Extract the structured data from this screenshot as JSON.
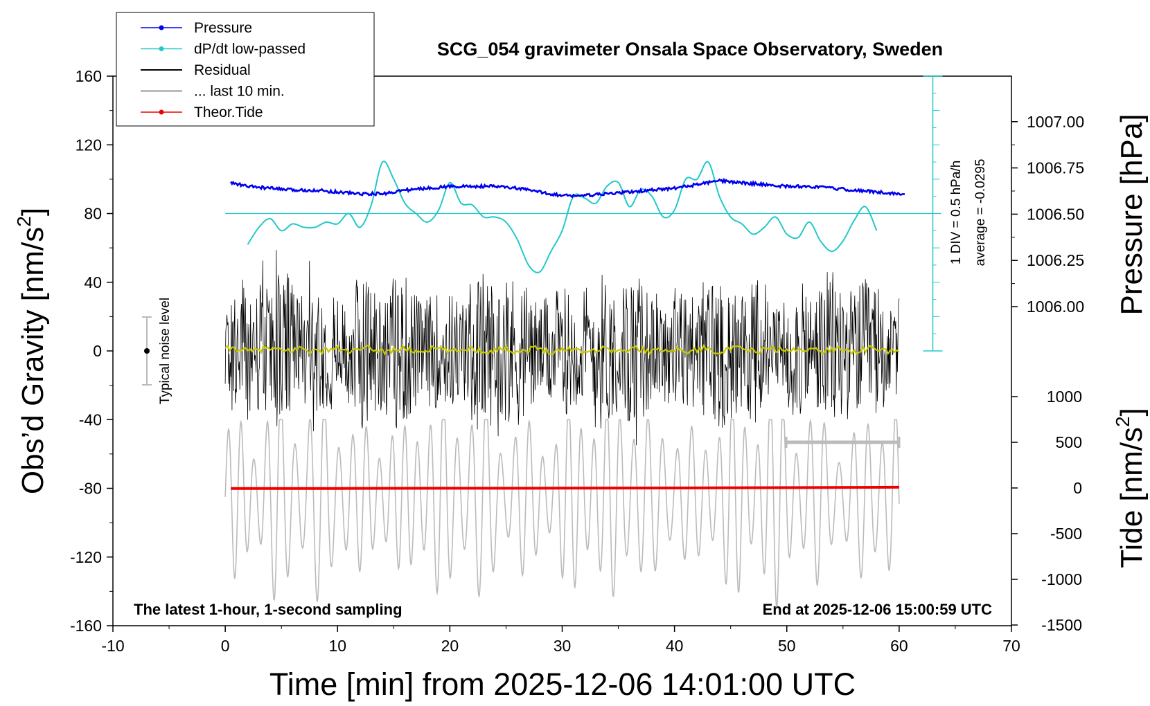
{
  "chart_data": {
    "type": "line",
    "title": "SCG_054 gravimeter Onsala Space Observatory, Sweden",
    "xlabel": "Time [min] from 2025-12-06 14:01:00 UTC",
    "ylabel_left": "Obs’d Gravity [nm/s",
    "ylabel_left_sup": "2",
    "ylabel_left_end": "]",
    "ylabel_pressure": "Pressure [hPa]",
    "ylabel_tide": "Tide [nm/s",
    "ylabel_tide_sup": "2",
    "ylabel_tide_end": "]",
    "xlim": [
      -10,
      70
    ],
    "ylim_left": [
      -160,
      160
    ],
    "x_ticks": [
      "-10",
      "0",
      "10",
      "20",
      "30",
      "40",
      "50",
      "60",
      "70"
    ],
    "y_ticks_left": [
      "-160",
      "-120",
      "-80",
      "-40",
      "0",
      "40",
      "80",
      "120",
      "160"
    ],
    "pressure_ticks": [
      "1006.00",
      "1006.25",
      "1006.50",
      "1006.75",
      "1007.00"
    ],
    "tide_ticks": [
      "-1500",
      "-1000",
      "-500",
      "0",
      "500",
      "1000"
    ],
    "legend": [
      {
        "label": "Pressure",
        "color": "#0000ee",
        "style": "line-dot"
      },
      {
        "label": "dP/dt low-passed",
        "color": "#22c8c8",
        "style": "line-dot"
      },
      {
        "label": "Residual",
        "color": "#000000",
        "style": "line"
      },
      {
        "label": "... last 10 min.",
        "color": "#bbbbbb",
        "style": "line"
      },
      {
        "label": "Theor.Tide",
        "color": "#ee0000",
        "style": "line-dot"
      }
    ],
    "legend_position": "top-left",
    "annotations": {
      "noise": "Typical noise level",
      "bottom_left": "The latest 1-hour, 1-second sampling",
      "bottom_right": "End at 2025-12-06 15:00:59 UTC",
      "dpdt_scale": "1 DIV = 0.5 hPa/h",
      "dpdt_average": "average = -0.0295"
    },
    "series": [
      {
        "name": "Pressure",
        "unit": "hPa",
        "x": [
          0.5,
          2,
          4,
          6,
          8,
          10,
          12,
          14,
          16,
          18,
          20,
          22,
          24,
          26,
          28,
          30,
          32,
          34,
          36,
          38,
          40,
          42,
          44,
          46,
          48,
          50,
          52,
          54,
          56,
          58,
          60
        ],
        "y": [
          1006.67,
          1006.65,
          1006.64,
          1006.63,
          1006.63,
          1006.62,
          1006.61,
          1006.61,
          1006.63,
          1006.64,
          1006.65,
          1006.65,
          1006.65,
          1006.64,
          1006.62,
          1006.6,
          1006.6,
          1006.61,
          1006.62,
          1006.63,
          1006.64,
          1006.66,
          1006.68,
          1006.67,
          1006.66,
          1006.65,
          1006.65,
          1006.64,
          1006.63,
          1006.62,
          1006.61
        ]
      },
      {
        "name": "dP/dt low-passed",
        "unit": "gravity-axis units",
        "x": [
          2,
          3,
          4,
          5,
          6,
          7,
          8,
          9,
          10,
          11,
          12,
          13,
          14,
          15,
          16,
          17,
          18,
          19,
          20,
          21,
          22,
          23,
          24,
          25,
          26,
          27,
          28,
          29,
          30,
          31,
          32,
          33,
          34,
          35,
          36,
          37,
          38,
          39,
          40,
          41,
          42,
          43,
          44,
          45,
          46,
          47,
          48,
          49,
          50,
          51,
          52,
          53,
          54,
          55,
          56,
          57,
          58
        ],
        "y": [
          62,
          72,
          77,
          70,
          74,
          72,
          72,
          75,
          74,
          80,
          72,
          85,
          110,
          100,
          86,
          80,
          75,
          82,
          98,
          86,
          85,
          78,
          78,
          75,
          65,
          50,
          46,
          58,
          70,
          90,
          89,
          86,
          96,
          98,
          84,
          94,
          90,
          78,
          82,
          100,
          100,
          110,
          90,
          78,
          74,
          68,
          72,
          78,
          68,
          66,
          75,
          64,
          58,
          64,
          76,
          84,
          70
        ]
      },
      {
        "name": "Residual",
        "note": "1-second residual gravity, envelope approx ±40 nm/s2 around 0"
      },
      {
        "name": "... last 10 min.",
        "note": "approx. ±30 nm/s2 around 0 (yellow trace)"
      },
      {
        "name": "Theor.Tide",
        "unit": "nm/s2",
        "x": [
          0.5,
          10,
          20,
          30,
          40,
          50,
          60
        ],
        "y": [
          -5,
          -5,
          -3,
          -2,
          0,
          4,
          8
        ]
      }
    ],
    "overlay_traces": [
      {
        "description": "grey oscillating trace on tide axis",
        "unit": "nm/s2",
        "range": [
          -1500,
          500
        ]
      }
    ]
  },
  "colors": {
    "pressure": "#0000ee",
    "dpdt": "#22c8c8",
    "residual": "#000000",
    "last10": "#c9c900",
    "grey": "#bbbbbb",
    "tide": "#ee0000"
  }
}
